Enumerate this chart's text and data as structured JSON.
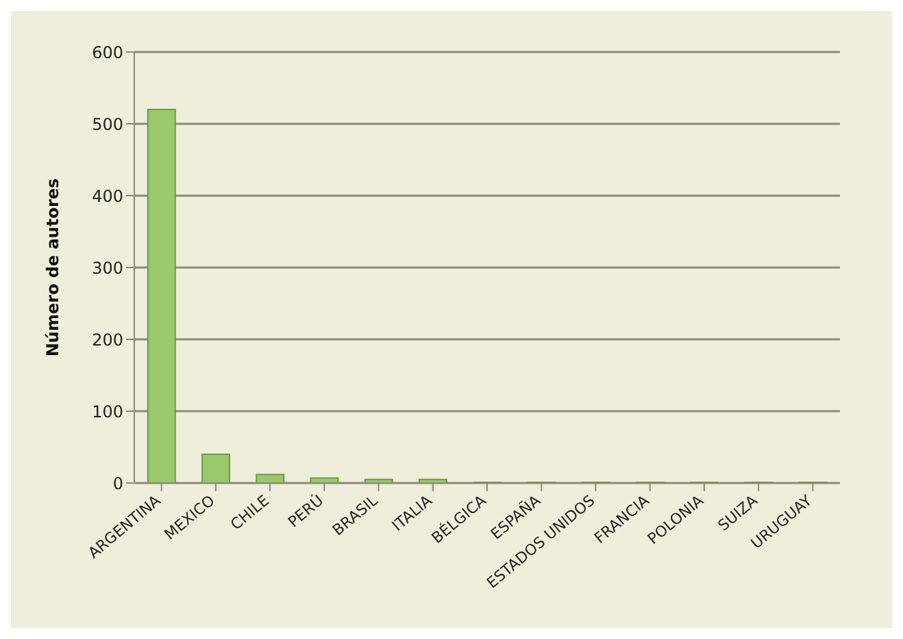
{
  "chart_data": {
    "type": "bar",
    "ylabel": "Número de autores",
    "categories": [
      "ARGENTINA",
      "MEXICO",
      "CHILE",
      "PERÚ",
      "BRASIL",
      "ITALIA",
      "BÉLGICA",
      "ESPAÑA",
      "ESTADOS UNIDOS",
      "FRANCIA",
      "POLONIA",
      "SUIZA",
      "URUGUAY"
    ],
    "values": [
      520,
      40,
      12,
      7,
      5,
      5,
      1,
      1,
      1,
      1,
      1,
      1,
      1
    ],
    "color": "#9bc86a",
    "ylim": [
      0,
      600
    ],
    "yticks": [
      0,
      100,
      200,
      300,
      400,
      500,
      600
    ],
    "grid": "y"
  }
}
